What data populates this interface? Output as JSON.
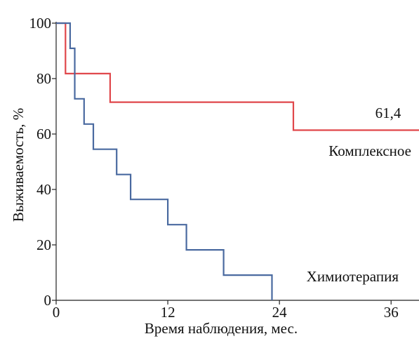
{
  "chart_data": {
    "type": "line",
    "subtype": "step (Kaplan–Meier)",
    "title": "",
    "xlabel": "Время наблюдения, мес.",
    "ylabel": "Выживаемость, %",
    "xlim": [
      0,
      39
    ],
    "ylim": [
      0,
      100
    ],
    "xticks": [
      0,
      12,
      24,
      36
    ],
    "yticks": [
      0,
      20,
      40,
      60,
      80,
      100
    ],
    "grid": false,
    "series": [
      {
        "name": "Комплексное",
        "color": "#e0474b",
        "steps": [
          [
            0,
            100
          ],
          [
            1.0,
            100
          ],
          [
            1.0,
            81.8
          ],
          [
            5.8,
            81.8
          ],
          [
            5.8,
            71.5
          ],
          [
            25.5,
            71.5
          ],
          [
            25.5,
            61.4
          ],
          [
            39,
            61.4
          ]
        ]
      },
      {
        "name": "Химиотерапия",
        "color": "#4a6aa0",
        "steps": [
          [
            0,
            100
          ],
          [
            1.5,
            100
          ],
          [
            1.5,
            90.9
          ],
          [
            2.0,
            90.9
          ],
          [
            2.0,
            72.7
          ],
          [
            3.0,
            72.7
          ],
          [
            3.0,
            63.6
          ],
          [
            4.0,
            63.6
          ],
          [
            4.0,
            54.5
          ],
          [
            6.5,
            54.5
          ],
          [
            6.5,
            45.4
          ],
          [
            8.0,
            45.4
          ],
          [
            8.0,
            36.4
          ],
          [
            12.0,
            36.4
          ],
          [
            12.0,
            27.3
          ],
          [
            14.0,
            27.3
          ],
          [
            14.0,
            18.2
          ],
          [
            18.0,
            18.2
          ],
          [
            18.0,
            9.1
          ],
          [
            23.2,
            9.1
          ],
          [
            23.2,
            0
          ]
        ]
      }
    ],
    "annotations": [
      {
        "text": "61,4"
      },
      {
        "text": "Комплексное"
      },
      {
        "text": "Химиотерапия"
      }
    ]
  }
}
